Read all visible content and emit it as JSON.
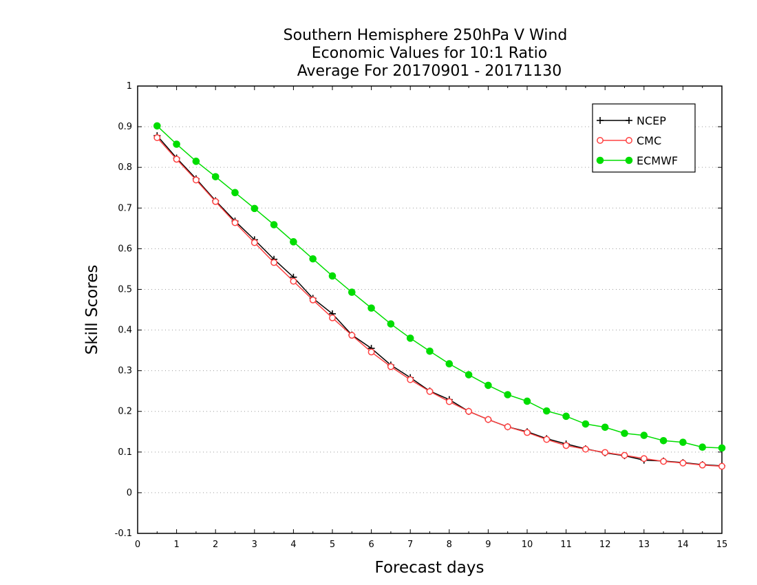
{
  "chart_data": {
    "type": "line",
    "title_lines": [
      "Southern Hemisphere 250hPa V Wind",
      "Economic Values for 10:1 Ratio",
      "Average For 20170901 - 20171130"
    ],
    "xlabel": "Forecast days",
    "ylabel": "Skill Scores",
    "xlim": [
      0,
      15
    ],
    "ylim": [
      -0.1,
      1
    ],
    "xticks": [
      "0",
      "1",
      "2",
      "3",
      "4",
      "5",
      "6",
      "7",
      "8",
      "9",
      "10",
      "11",
      "12",
      "13",
      "14",
      "15"
    ],
    "yticks": [
      "-0.1",
      "0",
      "0.1",
      "0.2",
      "0.3",
      "0.4",
      "0.5",
      "0.6",
      "0.7",
      "0.8",
      "0.9",
      "1"
    ],
    "grid": "dotted horizontal",
    "legend_position": "top-right",
    "x": [
      0.5,
      1,
      1.5,
      2,
      2.5,
      3,
      3.5,
      4,
      4.5,
      5,
      5.5,
      6,
      6.5,
      7,
      7.5,
      8,
      8.5,
      9,
      9.5,
      10,
      10.5,
      11,
      11.5,
      12,
      12.5,
      13,
      13.5,
      14,
      14.5,
      15
    ],
    "series": [
      {
        "name": "NCEP",
        "color": "#000000",
        "marker": "plus",
        "values": [
          0.878,
          0.823,
          0.772,
          0.718,
          0.668,
          0.622,
          0.574,
          0.53,
          0.478,
          0.44,
          0.388,
          0.355,
          0.314,
          0.283,
          0.25,
          0.229,
          0.2,
          0.18,
          0.162,
          0.15,
          0.133,
          0.12,
          0.108,
          0.098,
          0.091,
          0.08,
          0.078,
          0.074,
          0.069,
          0.066
        ]
      },
      {
        "name": "CMC",
        "color": "#ff4040",
        "marker": "open-circle",
        "values": [
          0.873,
          0.82,
          0.769,
          0.716,
          0.664,
          0.615,
          0.566,
          0.52,
          0.474,
          0.43,
          0.387,
          0.346,
          0.31,
          0.278,
          0.249,
          0.224,
          0.2,
          0.18,
          0.162,
          0.148,
          0.131,
          0.116,
          0.107,
          0.099,
          0.092,
          0.084,
          0.077,
          0.073,
          0.068,
          0.065
        ]
      },
      {
        "name": "ECMWF",
        "color": "#00dd00",
        "marker": "filled-circle",
        "values": [
          0.902,
          0.857,
          0.815,
          0.777,
          0.738,
          0.699,
          0.659,
          0.617,
          0.575,
          0.533,
          0.493,
          0.454,
          0.415,
          0.38,
          0.348,
          0.317,
          0.29,
          0.264,
          0.241,
          0.225,
          0.201,
          0.188,
          0.169,
          0.161,
          0.146,
          0.141,
          0.128,
          0.124,
          0.112,
          0.11
        ]
      }
    ]
  }
}
